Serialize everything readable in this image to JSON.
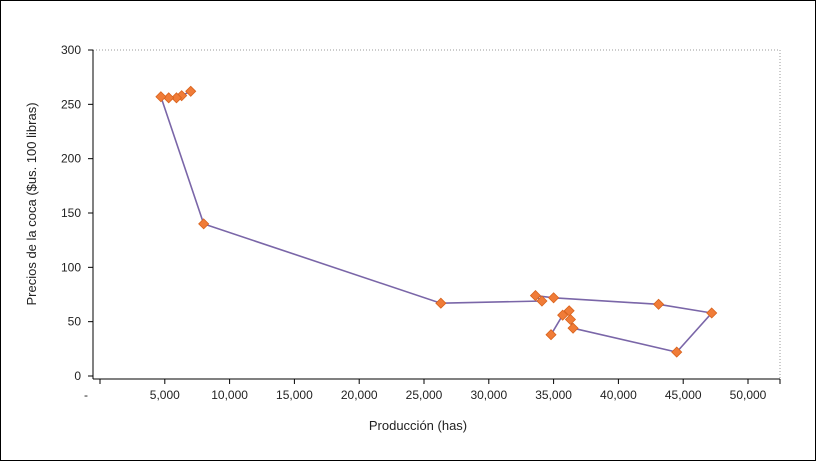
{
  "chart_data": {
    "type": "scatter",
    "xlabel": "Producción (has)",
    "ylabel": "Precios de la coca ($us. 100 libras)",
    "x_tick_labels": [
      "-",
      "5,000",
      "10,000",
      "15,000",
      "20,000",
      "25,000",
      "30,000",
      "35,000",
      "40,000",
      "45,000",
      "50,000"
    ],
    "x_ticks": [
      0,
      5000,
      10000,
      15000,
      20000,
      25000,
      30000,
      35000,
      40000,
      45000,
      50000
    ],
    "y_ticks": [
      0,
      50,
      100,
      150,
      200,
      250,
      300
    ],
    "xlim": [
      0,
      50000
    ],
    "ylim": [
      0,
      300
    ],
    "grid": false,
    "plot_border": "dotted",
    "colors": {
      "line": "#7a66a8",
      "marker": "#f07c38",
      "marker_stroke": "#d8621c"
    },
    "series": [
      {
        "points": [
          {
            "x": 7000,
            "y": 262
          },
          {
            "x": 6300,
            "y": 258
          },
          {
            "x": 5900,
            "y": 256
          },
          {
            "x": 5300,
            "y": 256
          },
          {
            "x": 4700,
            "y": 257
          },
          {
            "x": 8000,
            "y": 140
          },
          {
            "x": 26300,
            "y": 67
          },
          {
            "x": 34100,
            "y": 69
          },
          {
            "x": 33600,
            "y": 74
          },
          {
            "x": 35000,
            "y": 72
          },
          {
            "x": 43100,
            "y": 66
          },
          {
            "x": 47200,
            "y": 58
          },
          {
            "x": 44500,
            "y": 22
          },
          {
            "x": 36500,
            "y": 44
          },
          {
            "x": 36300,
            "y": 52
          },
          {
            "x": 36200,
            "y": 60
          },
          {
            "x": 35700,
            "y": 56
          },
          {
            "x": 34800,
            "y": 38
          }
        ]
      }
    ]
  }
}
